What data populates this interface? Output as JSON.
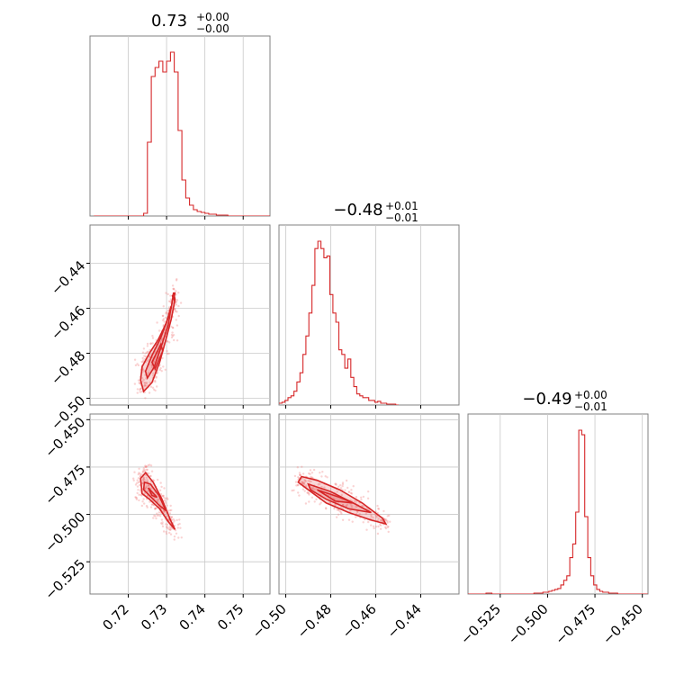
{
  "chart_data": {
    "type": "corner",
    "color": "#d62728",
    "grid": true,
    "parameters": [
      {
        "id": "p1",
        "title": {
          "value": "0.73",
          "upper": "+0.00",
          "lower": "−0.00"
        },
        "range": [
          0.71,
          0.757
        ],
        "ticks": [
          {
            "value": 0.72,
            "label": "0.72"
          },
          {
            "value": 0.73,
            "label": "0.73"
          },
          {
            "value": 0.74,
            "label": "0.74"
          },
          {
            "value": 0.75,
            "label": "0.75"
          }
        ]
      },
      {
        "id": "p2",
        "title": {
          "value": "−0.48",
          "upper": "+0.01",
          "lower": "−0.01"
        },
        "range": [
          -0.503,
          -0.423
        ],
        "ticks": [
          {
            "value": -0.5,
            "label": "−0.50"
          },
          {
            "value": -0.48,
            "label": "−0.48"
          },
          {
            "value": -0.46,
            "label": "−0.46"
          },
          {
            "value": -0.44,
            "label": "−0.44"
          }
        ]
      },
      {
        "id": "p3",
        "title": {
          "value": "−0.49",
          "upper": "+0.00",
          "lower": "−0.01"
        },
        "range": [
          -0.542,
          -0.447
        ],
        "ticks": [
          {
            "value": -0.525,
            "label": "−0.525"
          },
          {
            "value": -0.5,
            "label": "−0.500"
          },
          {
            "value": -0.475,
            "label": "−0.475"
          },
          {
            "value": -0.45,
            "label": "−0.450"
          }
        ]
      }
    ],
    "histograms": [
      {
        "parameter": "p1",
        "bin_start": 0.711,
        "bin_width": 0.001,
        "counts": [
          0,
          0,
          0,
          0,
          0,
          0,
          0,
          0,
          0,
          0,
          0,
          0,
          0,
          3,
          82,
          155,
          165,
          172,
          160,
          172,
          182,
          160,
          95,
          40,
          20,
          12,
          7,
          5,
          4,
          3,
          2,
          2,
          1,
          1,
          1,
          0,
          0,
          0,
          0,
          0,
          0,
          0,
          0,
          0,
          0,
          0
        ]
      },
      {
        "parameter": "p2",
        "bin_start": -0.503,
        "bin_width": 0.00133,
        "counts": [
          2,
          3,
          5,
          8,
          10,
          15,
          25,
          35,
          55,
          75,
          100,
          130,
          170,
          178,
          170,
          160,
          162,
          120,
          100,
          90,
          60,
          55,
          40,
          50,
          30,
          20,
          12,
          10,
          8,
          8,
          5,
          5,
          3,
          4,
          2,
          2,
          1,
          1,
          1,
          0
        ]
      },
      {
        "parameter": "p3",
        "bin_start": -0.542,
        "bin_width": 0.00158,
        "counts": [
          0,
          0,
          0,
          0,
          0,
          0,
          1,
          1,
          0,
          0,
          0,
          0,
          0,
          0,
          0,
          0,
          0,
          0,
          0,
          0,
          0,
          0,
          1,
          1,
          1,
          2,
          2,
          3,
          4,
          5,
          6,
          10,
          15,
          20,
          40,
          55,
          90,
          180,
          175,
          85,
          40,
          20,
          10,
          5,
          3,
          2,
          2,
          1,
          1,
          1,
          0,
          0,
          0,
          0,
          0,
          0,
          0,
          0,
          0,
          0
        ]
      }
    ],
    "pairs": [
      {
        "x": "p1",
        "y": "p2",
        "contours": [
          [
            [
              0.7232,
              -0.492
            ],
            [
              0.7236,
              -0.486
            ],
            [
              0.7255,
              -0.48
            ],
            [
              0.7278,
              -0.474
            ],
            [
              0.7298,
              -0.467
            ],
            [
              0.7312,
              -0.46
            ],
            [
              0.7318,
              -0.453
            ],
            [
              0.7322,
              -0.456
            ],
            [
              0.7312,
              -0.465
            ],
            [
              0.7298,
              -0.474
            ],
            [
              0.7282,
              -0.484
            ],
            [
              0.7262,
              -0.493
            ],
            [
              0.724,
              -0.497
            ]
          ],
          [
            [
              0.7245,
              -0.488
            ],
            [
              0.7262,
              -0.481
            ],
            [
              0.7285,
              -0.473
            ],
            [
              0.7302,
              -0.465
            ],
            [
              0.7312,
              -0.459
            ],
            [
              0.7305,
              -0.467
            ],
            [
              0.7288,
              -0.476
            ],
            [
              0.7268,
              -0.486
            ],
            [
              0.725,
              -0.491
            ]
          ],
          [
            [
              0.7262,
              -0.484
            ],
            [
              0.7285,
              -0.476
            ],
            [
              0.729,
              -0.479
            ],
            [
              0.727,
              -0.487
            ]
          ],
          [
            [
              0.7315,
              -0.4545
            ],
            [
              0.7322,
              -0.453
            ],
            [
              0.7319,
              -0.456
            ]
          ]
        ]
      },
      {
        "x": "p1",
        "y": "p3",
        "contours": [
          [
            [
              0.7232,
              -0.481
            ],
            [
              0.7245,
              -0.478
            ],
            [
              0.7265,
              -0.483
            ],
            [
              0.7288,
              -0.492
            ],
            [
              0.731,
              -0.503
            ],
            [
              0.7322,
              -0.508
            ],
            [
              0.7305,
              -0.504
            ],
            [
              0.7282,
              -0.497
            ],
            [
              0.7255,
              -0.492
            ],
            [
              0.7236,
              -0.489
            ]
          ],
          [
            [
              0.7242,
              -0.483
            ],
            [
              0.7258,
              -0.484
            ],
            [
              0.728,
              -0.49
            ],
            [
              0.7298,
              -0.498
            ],
            [
              0.728,
              -0.495
            ],
            [
              0.7255,
              -0.49
            ],
            [
              0.724,
              -0.487
            ]
          ],
          [
            [
              0.7252,
              -0.486
            ],
            [
              0.7275,
              -0.491
            ],
            [
              0.7262,
              -0.49
            ]
          ]
        ]
      },
      {
        "x": "p2",
        "y": "p3",
        "contours": [
          [
            [
              -0.493,
              -0.48
            ],
            [
              -0.486,
              -0.482
            ],
            [
              -0.476,
              -0.487
            ],
            [
              -0.466,
              -0.494
            ],
            [
              -0.457,
              -0.502
            ],
            [
              -0.4555,
              -0.505
            ],
            [
              -0.462,
              -0.503
            ],
            [
              -0.472,
              -0.499
            ],
            [
              -0.482,
              -0.494
            ],
            [
              -0.49,
              -0.487
            ],
            [
              -0.4945,
              -0.483
            ]
          ],
          [
            [
              -0.49,
              -0.484
            ],
            [
              -0.48,
              -0.488
            ],
            [
              -0.47,
              -0.494
            ],
            [
              -0.462,
              -0.499
            ],
            [
              -0.472,
              -0.497
            ],
            [
              -0.482,
              -0.492
            ],
            [
              -0.489,
              -0.487
            ]
          ],
          [
            [
              -0.486,
              -0.487
            ],
            [
              -0.476,
              -0.491
            ],
            [
              -0.47,
              -0.494
            ],
            [
              -0.478,
              -0.493
            ]
          ]
        ]
      }
    ]
  }
}
